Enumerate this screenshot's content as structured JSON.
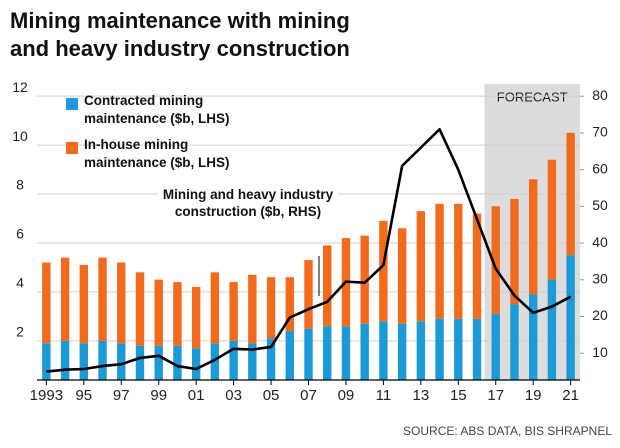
{
  "chart_data": {
    "type": "bar",
    "title": [
      "Mining maintenance with mining",
      "and heavy industry construction"
    ],
    "categories": [
      "1993",
      null,
      "95",
      null,
      "97",
      null,
      "99",
      null,
      "01",
      null,
      "03",
      null,
      "05",
      null,
      "07",
      null,
      "09",
      null,
      "11",
      null,
      "13",
      null,
      "15",
      null,
      "17",
      null,
      "19",
      null,
      "21"
    ],
    "series": [
      {
        "name": "Contracted mining maintenance ($b, LHS)",
        "color": "#1a9ad6",
        "stack": true,
        "values": [
          1.9,
          2.0,
          1.9,
          2.0,
          1.9,
          1.8,
          1.8,
          1.8,
          1.7,
          1.9,
          2.0,
          1.9,
          2.1,
          2.4,
          2.5,
          2.6,
          2.6,
          2.7,
          2.8,
          2.7,
          2.8,
          2.9,
          2.9,
          2.9,
          3.1,
          3.5,
          3.9,
          4.5,
          5.5
        ]
      },
      {
        "name": "In-house mining maintenance ($b, LHS)",
        "color": "#f26a1b",
        "stack": true,
        "values": [
          3.3,
          3.4,
          3.2,
          3.4,
          3.3,
          3.0,
          2.7,
          2.6,
          2.5,
          2.9,
          2.4,
          2.8,
          2.5,
          2.2,
          2.8,
          3.3,
          3.6,
          3.6,
          4.1,
          3.9,
          4.5,
          4.7,
          4.7,
          4.3,
          4.4,
          4.3,
          4.7,
          4.9,
          5.0
        ]
      },
      {
        "name": "Mining and heavy industry construction ($b, RHS)",
        "color": "#000000",
        "type": "line",
        "axis": "y2",
        "values": [
          5,
          5.5,
          5.7,
          6.5,
          7,
          8.7,
          9.3,
          6.5,
          5.7,
          8.2,
          11.2,
          11,
          11.7,
          19.7,
          22,
          24,
          29.5,
          29.2,
          34,
          61,
          66,
          71,
          60,
          46.5,
          33,
          25.7,
          21,
          22.7,
          25.4
        ]
      }
    ],
    "forecast_label": "FORECAST",
    "forecast_from": "17",
    "ylim": [
      0.4,
      12.25
    ],
    "yticks": [
      2,
      4,
      6,
      8,
      10,
      12
    ],
    "y2lim": [
      2.7,
      81.7
    ],
    "y2ticks": [
      10,
      20,
      30,
      40,
      50,
      60,
      70,
      80
    ],
    "grid": true,
    "source": "SOURCE: ABS DATA, BIS SHRAPNEL"
  }
}
